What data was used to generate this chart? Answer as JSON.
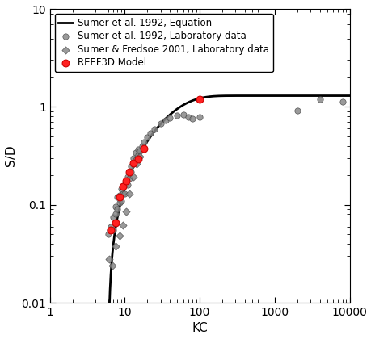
{
  "title": "",
  "xlabel": "KC",
  "ylabel": "S/D",
  "xlim": [
    1,
    10000
  ],
  "ylim": [
    0.01,
    10
  ],
  "legend_entries": [
    "Sumer et al. 1992, Equation",
    "Sumer et al. 1992, Laboratory data",
    "Sumer & Fredsoe 2001, Laboratory data",
    "REEF3D Model"
  ],
  "sumer1992_lab": [
    [
      6.0,
      0.05
    ],
    [
      6.3,
      0.055
    ],
    [
      6.5,
      0.06
    ],
    [
      7.0,
      0.055
    ],
    [
      7.0,
      0.075
    ],
    [
      7.5,
      0.08
    ],
    [
      7.5,
      0.095
    ],
    [
      8.0,
      0.09
    ],
    [
      8.0,
      0.12
    ],
    [
      8.5,
      0.105
    ],
    [
      8.5,
      0.125
    ],
    [
      9.0,
      0.11
    ],
    [
      9.0,
      0.145
    ],
    [
      9.5,
      0.13
    ],
    [
      9.5,
      0.155
    ],
    [
      10.0,
      0.13
    ],
    [
      10.0,
      0.16
    ],
    [
      10.5,
      0.165
    ],
    [
      11.0,
      0.16
    ],
    [
      11.0,
      0.195
    ],
    [
      11.5,
      0.185
    ],
    [
      12.0,
      0.215
    ],
    [
      12.0,
      0.245
    ],
    [
      13.0,
      0.26
    ],
    [
      13.0,
      0.3
    ],
    [
      14.0,
      0.29
    ],
    [
      14.0,
      0.34
    ],
    [
      15.0,
      0.32
    ],
    [
      15.0,
      0.37
    ],
    [
      16.0,
      0.355
    ],
    [
      17.0,
      0.395
    ],
    [
      18.0,
      0.44
    ],
    [
      20.0,
      0.49
    ],
    [
      22.0,
      0.54
    ],
    [
      25.0,
      0.59
    ],
    [
      30.0,
      0.68
    ],
    [
      35.0,
      0.73
    ],
    [
      40.0,
      0.77
    ],
    [
      50.0,
      0.81
    ],
    [
      60.0,
      0.83
    ],
    [
      70.0,
      0.79
    ],
    [
      80.0,
      0.76
    ],
    [
      100.0,
      0.78
    ],
    [
      2000.0,
      0.92
    ],
    [
      4000.0,
      1.2
    ],
    [
      8000.0,
      1.13
    ]
  ],
  "sumer_fredsoe2001_lab": [
    [
      6.2,
      0.028
    ],
    [
      6.8,
      0.024
    ],
    [
      7.5,
      0.038
    ],
    [
      8.5,
      0.048
    ],
    [
      9.5,
      0.062
    ],
    [
      10.5,
      0.085
    ],
    [
      11.5,
      0.13
    ],
    [
      13.0,
      0.195
    ],
    [
      14.5,
      0.26
    ],
    [
      16.0,
      0.31
    ]
  ],
  "reef3d": [
    [
      6.5,
      0.055
    ],
    [
      7.5,
      0.065
    ],
    [
      8.5,
      0.12
    ],
    [
      9.5,
      0.155
    ],
    [
      10.5,
      0.175
    ],
    [
      11.5,
      0.215
    ],
    [
      13.0,
      0.265
    ],
    [
      15.0,
      0.295
    ],
    [
      18.0,
      0.375
    ],
    [
      100.0,
      1.195
    ]
  ],
  "line_color": "#000000",
  "sumer1992_lab_color": "#888888",
  "sumer_fredsoe2001_color": "#888888",
  "reef3d_color": "#ff2222",
  "reef3d_edge_color": "#cc0000"
}
